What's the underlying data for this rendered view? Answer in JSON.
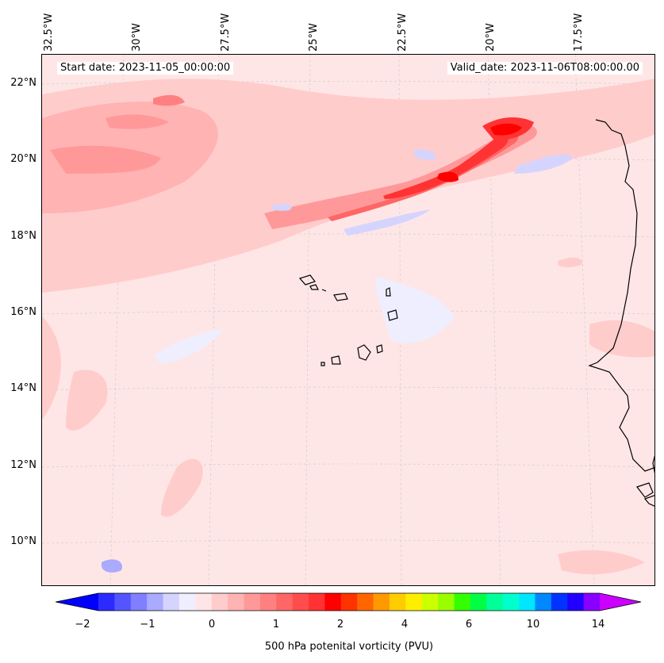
{
  "map": {
    "start_date": "Start date: 2023-11-05_00:00:00",
    "valid_date": "Valid_date: 2023-11-06T08:00:00.00",
    "lon_labels": [
      "32.5°W",
      "30°W",
      "27.5°W",
      "25°W",
      "22.5°W",
      "20°W",
      "17.5°W"
    ],
    "lat_labels": [
      "22°N",
      "20°N",
      "18°N",
      "16°N",
      "14°N",
      "12°N",
      "10°N"
    ],
    "background_color": "#ffe6e6",
    "coastline_color": "#000000",
    "grid_color": "#bbbbbb"
  },
  "colorbar": {
    "label": "500 hPa potenital vorticity (PVU)",
    "ticks": [
      "−2",
      "−1",
      "0",
      "1",
      "2",
      "4",
      "6",
      "10",
      "14"
    ],
    "colors": [
      "#0000ff",
      "#2b2bff",
      "#5555ff",
      "#7f7fff",
      "#aaaaff",
      "#d4d4ff",
      "#eeeeff",
      "#ffe6e6",
      "#ffcccc",
      "#ffb3b3",
      "#ff9999",
      "#ff8080",
      "#ff6666",
      "#ff4d4d",
      "#ff3333",
      "#ff0000",
      "#ff3300",
      "#ff6600",
      "#ff9900",
      "#ffcc00",
      "#ffee00",
      "#ccff00",
      "#99ff00",
      "#33ff00",
      "#00ff44",
      "#00ff99",
      "#00ffcc",
      "#00e6ff",
      "#0088ff",
      "#0033ff",
      "#2200ff",
      "#8800ff",
      "#cc00ff"
    ]
  }
}
